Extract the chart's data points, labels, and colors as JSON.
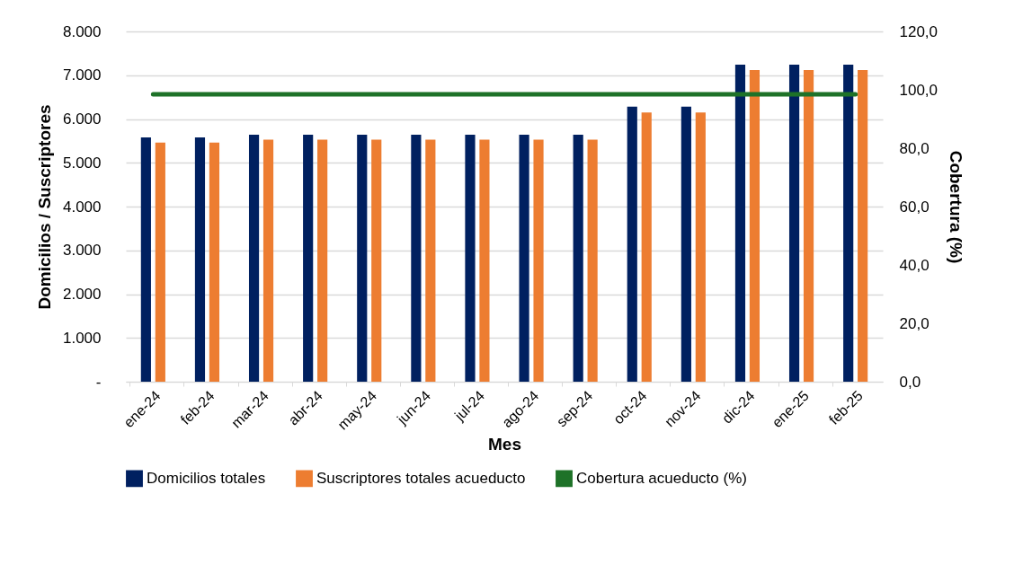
{
  "chart_data": {
    "type": "bar",
    "xlabel": "Mes",
    "ylabel": "Domicilios / Suscriptores",
    "y2label": "Cobertura (%)",
    "categories": [
      "ene-24",
      "feb-24",
      "mar-24",
      "abr-24",
      "may-24",
      "jun-24",
      "jul-24",
      "ago-24",
      "sep-24",
      "oct-24",
      "nov-24",
      "dic-24",
      "ene-25",
      "feb-25"
    ],
    "series": [
      {
        "name": "Domicilios totales",
        "color": "#002060",
        "values": [
          5580,
          5580,
          5640,
          5640,
          5640,
          5640,
          5640,
          5640,
          5640,
          6280,
          6280,
          7240,
          7240,
          7240
        ]
      },
      {
        "name": "Suscriptores totales acueducto",
        "color": "#ed7d31",
        "values": [
          5460,
          5460,
          5530,
          5530,
          5530,
          5530,
          5530,
          5530,
          5530,
          6150,
          6150,
          7120,
          7120,
          7120
        ]
      },
      {
        "name": "Cobertura acueducto (%)",
        "type": "line",
        "axis": "y2",
        "color": "#1e7228",
        "values": [
          98.5,
          98.5,
          98.5,
          98.5,
          98.5,
          98.5,
          98.5,
          98.5,
          98.5,
          98.5,
          98.5,
          98.5,
          98.5,
          98.5
        ]
      }
    ],
    "ylim": [
      0,
      8000
    ],
    "yticks": [
      {
        "value": 0,
        "label": "-"
      },
      {
        "value": 1000,
        "label": "1.000"
      },
      {
        "value": 2000,
        "label": "2.000"
      },
      {
        "value": 3000,
        "label": "3.000"
      },
      {
        "value": 4000,
        "label": "4.000"
      },
      {
        "value": 5000,
        "label": "5.000"
      },
      {
        "value": 6000,
        "label": "6.000"
      },
      {
        "value": 7000,
        "label": "7.000"
      },
      {
        "value": 8000,
        "label": "8.000"
      }
    ],
    "y2lim": [
      0,
      120
    ],
    "y2ticks": [
      {
        "value": 0,
        "label": "0,0"
      },
      {
        "value": 20,
        "label": "20,0"
      },
      {
        "value": 40,
        "label": "40,0"
      },
      {
        "value": 60,
        "label": "60,0"
      },
      {
        "value": 80,
        "label": "80,0"
      },
      {
        "value": 100,
        "label": "100,0"
      },
      {
        "value": 120,
        "label": "120,0"
      }
    ],
    "grid": "y",
    "legend": "bottom"
  }
}
